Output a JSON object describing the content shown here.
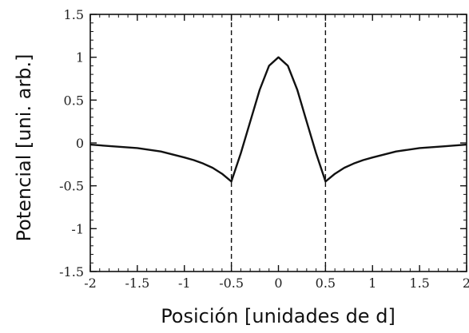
{
  "chart_data": {
    "type": "line",
    "title": "",
    "xlabel": "Posición [unidades de d]",
    "ylabel": "Potencial   [uni. arb.]",
    "xlim": [
      -2,
      2
    ],
    "ylim": [
      -1.5,
      1.5
    ],
    "xticks": [
      -2,
      -1.5,
      -1,
      -0.5,
      0,
      0.5,
      1,
      1.5,
      2
    ],
    "xtick_labels": [
      "-2",
      "-1.5",
      "-1",
      "-0.5",
      "0",
      "0.5",
      "1",
      "1.5",
      "2"
    ],
    "yticks": [
      1.5,
      1,
      0.5,
      0,
      -0.5,
      -1,
      -1.5
    ],
    "ytick_labels": [
      "1.5",
      "1",
      "0.5",
      "0",
      "-0.5",
      "-1",
      "-1.5"
    ],
    "grid": false,
    "vlines": [
      -0.5,
      0.5
    ],
    "series": [
      {
        "x": [
          -2,
          -1.75,
          -1.5,
          -1.25,
          -1,
          -0.9,
          -0.8,
          -0.7,
          -0.6,
          -0.5,
          -0.4,
          -0.3,
          -0.2,
          -0.1,
          0,
          0.1,
          0.2,
          0.3,
          0.4,
          0.5,
          0.6,
          0.7,
          0.8,
          0.9,
          1,
          1.25,
          1.5,
          1.75,
          2
        ],
        "values": [
          -0.02,
          -0.04,
          -0.06,
          -0.1,
          -0.17,
          -0.2,
          -0.24,
          -0.29,
          -0.36,
          -0.45,
          -0.12,
          0.25,
          0.62,
          0.9,
          1.0,
          0.9,
          0.62,
          0.25,
          -0.12,
          -0.45,
          -0.36,
          -0.29,
          -0.24,
          -0.2,
          -0.17,
          -0.1,
          -0.06,
          -0.04,
          -0.02
        ]
      }
    ]
  }
}
